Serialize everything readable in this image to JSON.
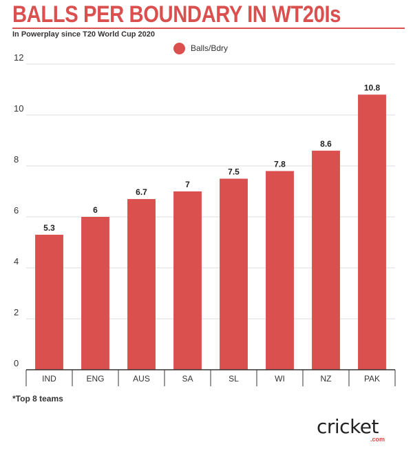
{
  "header": {
    "title": "BALLS PER BOUNDARY IN WT20Is",
    "subtitle": "In Powerplay since T20 World Cup 2020"
  },
  "footnote": "*Top 8 teams",
  "brand": {
    "logo_text": "cricket",
    "logo_suffix": ".com",
    "accent": "#e24545"
  },
  "colors": {
    "title": "#d9504f",
    "bar": "#d9504f",
    "grid": "#dddddd",
    "axis": "#333333"
  },
  "chart_data": {
    "type": "bar",
    "title": "BALLS PER BOUNDARY IN WT20Is",
    "subtitle": "In Powerplay since T20 World Cup 2020",
    "categories": [
      "IND",
      "ENG",
      "AUS",
      "SA",
      "SL",
      "WI",
      "NZ",
      "PAK"
    ],
    "series": [
      {
        "name": "Balls/Bdry",
        "values": [
          5.3,
          6,
          6.7,
          7,
          7.5,
          7.8,
          8.6,
          10.8
        ]
      }
    ],
    "value_labels": [
      "5.3",
      "6",
      "6.7",
      "7",
      "7.5",
      "7.8",
      "8.6",
      "10.8"
    ],
    "y_ticks": [
      0,
      2,
      4,
      6,
      8,
      10,
      12
    ],
    "ylim": [
      0,
      12
    ],
    "xlabel": "",
    "ylabel": "",
    "grid": true,
    "legend": "top-center"
  }
}
